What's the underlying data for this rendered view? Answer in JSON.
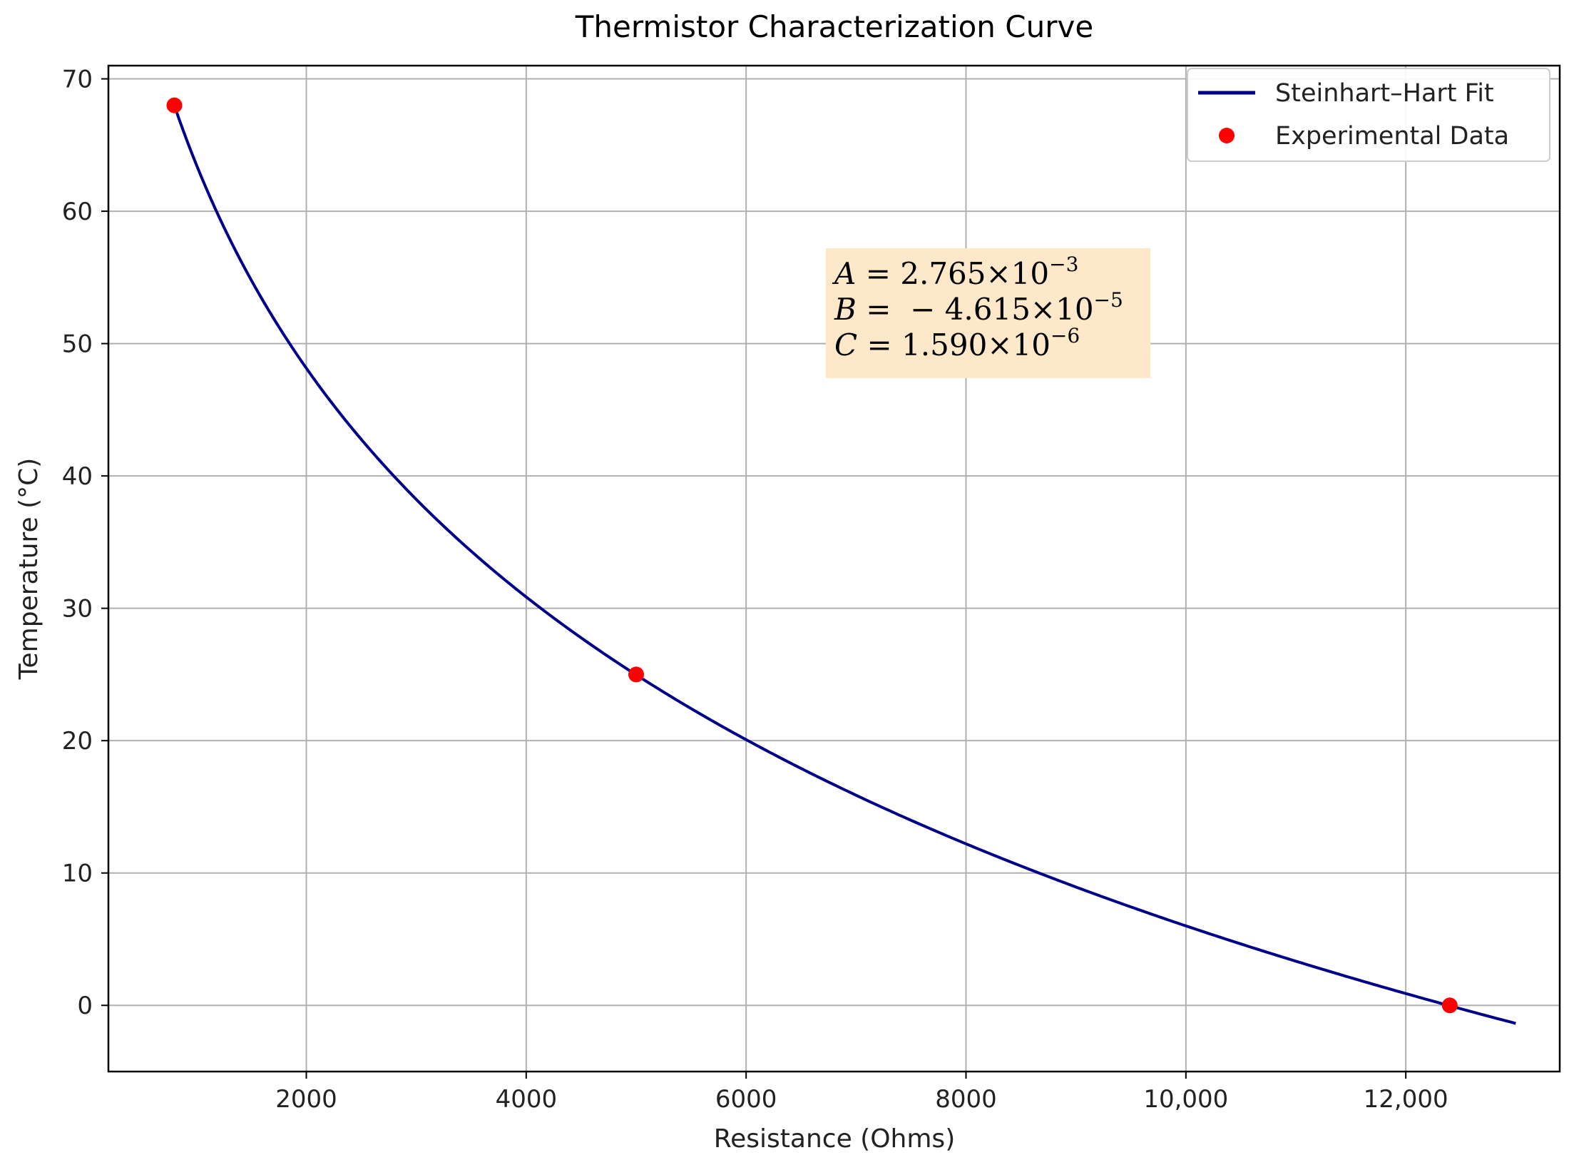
{
  "chart_data": {
    "type": "line",
    "title": "Thermistor Characterization Curve",
    "xlabel": "Resistance (Ohms)",
    "ylabel": "Temperature (°C)",
    "xlim": [
      200,
      13400
    ],
    "ylim": [
      -5,
      71
    ],
    "grid": true,
    "legend_position": "top-right",
    "x_ticks": [
      2000,
      4000,
      6000,
      8000,
      10000,
      12000
    ],
    "x_tick_labels": [
      "2000",
      "4000",
      "6000",
      "8000",
      "10,000",
      "12,000"
    ],
    "y_ticks": [
      0,
      10,
      20,
      30,
      40,
      50,
      60,
      70
    ],
    "y_tick_labels": [
      "0",
      "10",
      "20",
      "30",
      "40",
      "50",
      "60",
      "70"
    ],
    "series": [
      {
        "name": "Steinhart–Hart Fit",
        "kind": "line",
        "color": "#00008b",
        "x_range": [
          800,
          13000
        ],
        "coefficients": {
          "A": 0.002765,
          "B": -4.615e-05,
          "C": 1.59e-06
        }
      },
      {
        "name": "Experimental Data",
        "kind": "scatter",
        "color": "#ff0000",
        "x": [
          800,
          5000,
          12400
        ],
        "y": [
          68,
          25,
          0
        ]
      }
    ],
    "annotation": {
      "box_color": "#fde9c9",
      "lines": [
        {
          "var": "A",
          "eq": " = ",
          "mantissa": "2.765×10",
          "exp": "−3"
        },
        {
          "var": "B",
          "eq": " =  − ",
          "mantissa": "4.615×10",
          "exp": "−5"
        },
        {
          "var": "C",
          "eq": " = ",
          "mantissa": "1.590×10",
          "exp": "−6"
        }
      ]
    }
  }
}
